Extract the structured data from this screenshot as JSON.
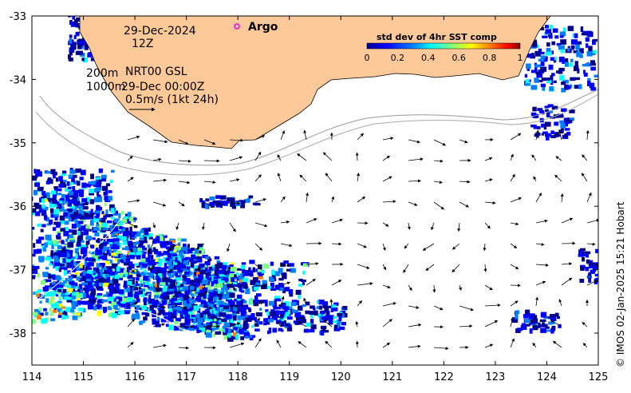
{
  "map": {
    "date": "29-Dec-2024",
    "hour": "12Z",
    "contour_shallow": "200m",
    "contour_deep": "1000m",
    "product": "NRT00 GSL",
    "product_time": "29-Dec 00:00Z",
    "scale_label": "0.5m/s (1kt 24h)",
    "argo_label": "Argo",
    "credit": "© IMOS 02-Jan-2025 15:21 Hobart",
    "colorbar": {
      "title": "std dev of 4hr SST comp",
      "ticks": [
        "0",
        "0.2",
        "0.4",
        "0.6",
        "0.8",
        "1"
      ],
      "colors": [
        "#00008f",
        "#0000ff",
        "#007fff",
        "#00ffff",
        "#7fff7f",
        "#ffff00",
        "#ff7f00",
        "#ff0000",
        "#7f0000"
      ]
    },
    "land_color": "#fdc999",
    "x_ticks": [
      "114",
      "115",
      "116",
      "117",
      "118",
      "119",
      "120",
      "121",
      "122",
      "123",
      "124",
      "125"
    ],
    "y_ticks": [
      "-33",
      "-34",
      "-35",
      "-36",
      "-37",
      "-38"
    ]
  }
}
